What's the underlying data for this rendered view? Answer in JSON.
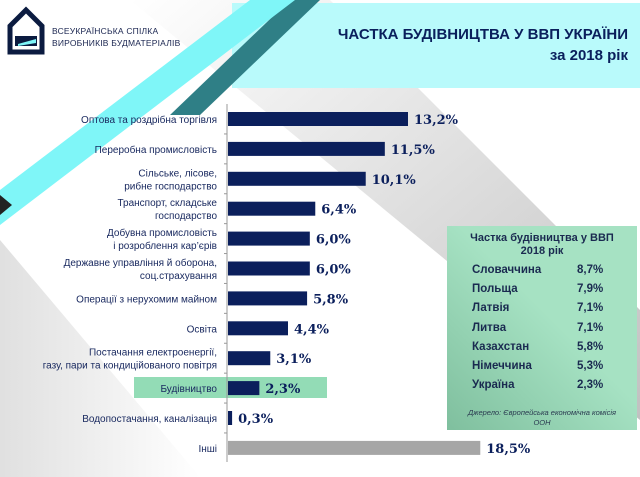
{
  "header": {
    "org_line1": "ВСЕУКРАЇНСЬКА СПІЛКА",
    "org_line2": "ВИРОБНИКІВ БУДМАТЕРІАЛІВ",
    "title_line1": "ЧАСТКА БУДІВНИЦТВА У ВВП УКРАЇНИ",
    "title_line2": "за 2018 рік"
  },
  "colors": {
    "bar": "#0b1f5c",
    "bar_other": "#a6a6a6",
    "highlight": "#93dcb6",
    "accent_cyan": "#7ff6f8",
    "header_band": "#b9fafb"
  },
  "chart_data": {
    "type": "bar",
    "orientation": "horizontal",
    "categories": [
      [
        "Оптова та роздрібна торгівля"
      ],
      [
        "Переробна промисловість"
      ],
      [
        "Сільське, лісове,",
        "рибне господарство"
      ],
      [
        "Транспорт, складське",
        "господарство"
      ],
      [
        "Добувна промисловість",
        "і розроблення кар’єрів"
      ],
      [
        "Державне управління й оборона,",
        "соц.страхування"
      ],
      [
        "Операції з нерухомим майном"
      ],
      [
        "Освіта"
      ],
      [
        "Постачання електроенергії,",
        "газу, пари та кондиційованого повітря"
      ],
      [
        "Будівництво"
      ],
      [
        "Водопостачання, каналізація"
      ],
      [
        "Інші"
      ]
    ],
    "values": [
      13.2,
      11.5,
      10.1,
      6.4,
      6.0,
      6.0,
      5.8,
      4.4,
      3.1,
      2.3,
      0.3,
      18.5
    ],
    "labels": [
      "13,2%",
      "11,5%",
      "10,1%",
      "6,4%",
      "6,0%",
      "6,0%",
      "5,8%",
      "4,4%",
      "3,1%",
      "2,3%",
      "0,3%",
      "18,5%"
    ],
    "highlighted": "Будівництво",
    "gray_category": "Інші",
    "xlim": [
      0,
      18.5
    ]
  },
  "comparison": {
    "title_line1": "Частка будівництва у ВВП",
    "title_line2": "2018 рік",
    "rows": [
      {
        "country": "Словаччина",
        "value": "8,7%"
      },
      {
        "country": "Польща",
        "value": "7,9%"
      },
      {
        "country": "Латвія",
        "value": "7,1%"
      },
      {
        "country": "Литва",
        "value": "7,1%"
      },
      {
        "country": "Казахстан",
        "value": "5,8%"
      },
      {
        "country": "Німеччина",
        "value": "5,3%"
      },
      {
        "country": "Україна",
        "value": "2,3%"
      }
    ],
    "source_line1": "Джерело: Європейська економічна комісія",
    "source_line2": "ООН"
  }
}
